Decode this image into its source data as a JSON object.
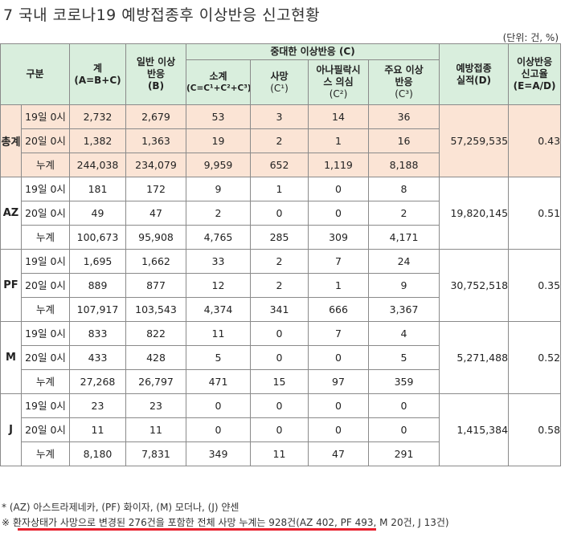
{
  "title": "7  국내 코로나19 예방접종후 이상반응 신고현황",
  "unit": "(단위: 건, %)",
  "headers": {
    "category": "구분",
    "total": "계\n(A=B+C)",
    "general": "일반 이상\n반응\n(B)",
    "serious": "중대한 이상반응 (C)",
    "subtotal": "소계",
    "subtotal_formula": "(C=C¹+C²+C³)",
    "death": "사망",
    "death_code": "(C¹)",
    "anaphylaxis": "아나필락시\n스 의심",
    "anaphylaxis_code": "(C²)",
    "major": "주요  이상\n반응",
    "major_code": "(C³)",
    "vaccinated": "예방접종\n실적(D)",
    "rate": "이상반응\n신고율\n(E=A/D)"
  },
  "groups": [
    {
      "name": "총계",
      "vaccinated": "57,259,535",
      "rate": "0.43",
      "rows": [
        {
          "label": "19일 0시",
          "total": "2,732",
          "general": "2,679",
          "subtotal": "53",
          "death": "3",
          "anaphylaxis": "14",
          "major": "36"
        },
        {
          "label": "20일 0시",
          "total": "1,382",
          "general": "1,363",
          "subtotal": "19",
          "death": "2",
          "anaphylaxis": "1",
          "major": "16"
        },
        {
          "label": "누계",
          "total": "244,038",
          "general": "234,079",
          "subtotal": "9,959",
          "death": "652",
          "anaphylaxis": "1,119",
          "major": "8,188"
        }
      ]
    },
    {
      "name": "AZ",
      "vaccinated": "19,820,145",
      "rate": "0.51",
      "rows": [
        {
          "label": "19일 0시",
          "total": "181",
          "general": "172",
          "subtotal": "9",
          "death": "1",
          "anaphylaxis": "0",
          "major": "8"
        },
        {
          "label": "20일 0시",
          "total": "49",
          "general": "47",
          "subtotal": "2",
          "death": "0",
          "anaphylaxis": "0",
          "major": "2"
        },
        {
          "label": "누계",
          "total": "100,673",
          "general": "95,908",
          "subtotal": "4,765",
          "death": "285",
          "anaphylaxis": "309",
          "major": "4,171"
        }
      ]
    },
    {
      "name": "PF",
      "vaccinated": "30,752,518",
      "rate": "0.35",
      "rows": [
        {
          "label": "19일 0시",
          "total": "1,695",
          "general": "1,662",
          "subtotal": "33",
          "death": "2",
          "anaphylaxis": "7",
          "major": "24"
        },
        {
          "label": "20일 0시",
          "total": "889",
          "general": "877",
          "subtotal": "12",
          "death": "2",
          "anaphylaxis": "1",
          "major": "9"
        },
        {
          "label": "누계",
          "total": "107,917",
          "general": "103,543",
          "subtotal": "4,374",
          "death": "341",
          "anaphylaxis": "666",
          "major": "3,367"
        }
      ]
    },
    {
      "name": "M",
      "vaccinated": "5,271,488",
      "rate": "0.52",
      "rows": [
        {
          "label": "19일 0시",
          "total": "833",
          "general": "822",
          "subtotal": "11",
          "death": "0",
          "anaphylaxis": "7",
          "major": "4"
        },
        {
          "label": "20일 0시",
          "total": "433",
          "general": "428",
          "subtotal": "5",
          "death": "0",
          "anaphylaxis": "0",
          "major": "5"
        },
        {
          "label": "누계",
          "total": "27,268",
          "general": "26,797",
          "subtotal": "471",
          "death": "15",
          "anaphylaxis": "97",
          "major": "359"
        }
      ]
    },
    {
      "name": "J",
      "vaccinated": "1,415,384",
      "rate": "0.58",
      "rows": [
        {
          "label": "19일 0시",
          "total": "23",
          "general": "23",
          "subtotal": "0",
          "death": "0",
          "anaphylaxis": "0",
          "major": "0"
        },
        {
          "label": "20일 0시",
          "total": "11",
          "general": "11",
          "subtotal": "0",
          "death": "0",
          "anaphylaxis": "0",
          "major": "0"
        },
        {
          "label": "누계",
          "total": "8,180",
          "general": "7,831",
          "subtotal": "349",
          "death": "11",
          "anaphylaxis": "47",
          "major": "291"
        }
      ]
    }
  ],
  "notes": {
    "vaccine_names": "* (AZ) 아스트라제네카, (PF) 화이자, (M) 모더나, (J) 얀센",
    "death_note": "※ 환자상태가 사망으로 변경된 276건을 포함한 전체 사망 누계는 928건(AZ 402, PF 493, M 20건, J 13건)"
  }
}
